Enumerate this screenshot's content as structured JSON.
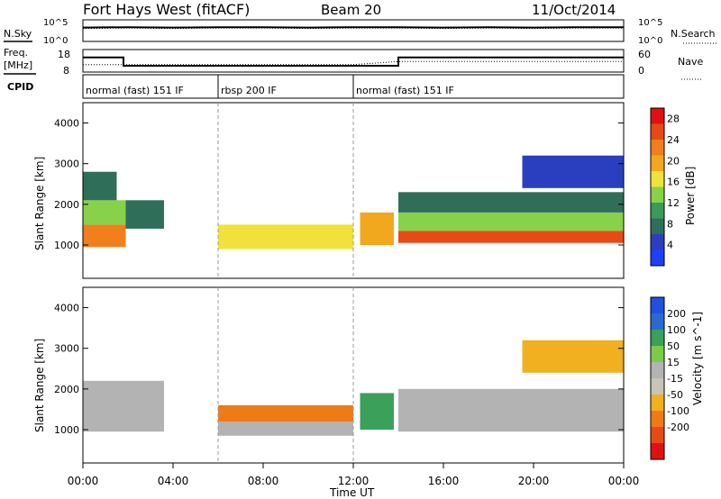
{
  "header": {
    "radar": "Fort Hays West (fitACF)",
    "beam": "Beam 20",
    "date": "11/Oct/2014"
  },
  "colors": {
    "power": [
      "#1f3fff",
      "#2a3fbf",
      "#2f6f5a",
      "#3b9a5a",
      "#88d14a",
      "#f0e23a",
      "#f2a81e",
      "#f07f1c",
      "#e84a16",
      "#e01010"
    ],
    "velocity": [
      "#2050e0",
      "#2a6ad0",
      "#3aa05a",
      "#7acc48",
      "#b3b3b3",
      "#c8c4b8",
      "#f0b020",
      "#f07a18",
      "#e84a14",
      "#e01010"
    ],
    "line": "#000000"
  },
  "chart_data": [
    {
      "type": "line",
      "panel": "noise",
      "left_label": "N.Sky",
      "right_label": "N.Search",
      "left_ticks": [
        "10^5",
        "10^0"
      ],
      "right_ticks": [
        "10^5",
        "10^0"
      ],
      "series": [
        {
          "name": "N.Sky",
          "x": [
            0,
            2,
            4,
            6,
            8,
            10,
            12,
            14,
            16,
            18,
            20,
            22,
            24
          ],
          "y": [
            3.2,
            3.3,
            3.2,
            3.3,
            3.3,
            3.2,
            3.3,
            3.3,
            3.2,
            3.3,
            3.2,
            3.3,
            3.3
          ]
        },
        {
          "name": "N.Search",
          "x": [
            0,
            2,
            4,
            6,
            8,
            10,
            12,
            14,
            16,
            18,
            20,
            22,
            24
          ],
          "y": [
            3.0,
            3.1,
            3.0,
            3.1,
            3.1,
            3.0,
            3.1,
            3.1,
            3.0,
            3.1,
            3.0,
            3.1,
            3.1
          ]
        }
      ],
      "xlim": [
        0,
        24
      ],
      "ylim": [
        0,
        5
      ]
    },
    {
      "type": "line",
      "panel": "frequency",
      "left_label": "Freq.",
      "left_unit": "[MHz]",
      "right_label": "Nave",
      "left_ticks": [
        "18",
        "8"
      ],
      "right_ticks": [
        "60",
        "0"
      ],
      "series": [
        {
          "name": "Freq.",
          "x": [
            0,
            1.8,
            1.8,
            14.0,
            14.0,
            24
          ],
          "y": [
            14.5,
            14.5,
            10.8,
            10.8,
            14.5,
            14.5
          ]
        },
        {
          "name": "Nave",
          "x": [
            0,
            2,
            4,
            6,
            8,
            10,
            12,
            14,
            16,
            18,
            20,
            22,
            24
          ],
          "y": [
            20,
            20,
            20,
            20,
            20,
            20,
            20,
            28,
            28,
            28,
            28,
            28,
            28
          ]
        }
      ],
      "ylim_freq": [
        8,
        18
      ],
      "ylim_nave": [
        0,
        60
      ]
    },
    {
      "type": "table",
      "panel": "cpid",
      "label": "CPID",
      "segments": [
        {
          "start": 0,
          "end": 6,
          "text": "normal (fast) 151 IF"
        },
        {
          "start": 6,
          "end": 12,
          "text": "rbsp 200 IF"
        },
        {
          "start": 12,
          "end": 24,
          "text": "normal (fast) 151 IF"
        }
      ]
    },
    {
      "type": "heatmap",
      "panel": "power",
      "ylabel": "Slant Range [km]",
      "yticks": [
        "1000",
        "2000",
        "3000",
        "4000"
      ],
      "ytick_values": [
        1000,
        2000,
        3000,
        4000
      ],
      "ylim": [
        180,
        4500
      ],
      "colorbar_label": "Power [dB]",
      "colorbar_ticks": [
        "4",
        "8",
        "12",
        "16",
        "20",
        "24",
        "28"
      ],
      "colorbar_range": [
        0,
        30
      ],
      "bands": [
        {
          "t0": 0.0,
          "t1": 1.9,
          "r0": 950,
          "r1": 1500,
          "level": 22
        },
        {
          "t0": 0.0,
          "t1": 1.9,
          "r0": 1500,
          "r1": 2100,
          "level": 12
        },
        {
          "t0": 0.0,
          "t1": 1.5,
          "r0": 2100,
          "r1": 2800,
          "level": 6
        },
        {
          "t0": 1.9,
          "t1": 3.6,
          "r0": 1400,
          "r1": 2100,
          "level": 8
        },
        {
          "t0": 6.0,
          "t1": 12.0,
          "r0": 900,
          "r1": 1500,
          "level": 16
        },
        {
          "t0": 12.3,
          "t1": 13.8,
          "r0": 1000,
          "r1": 1800,
          "level": 18
        },
        {
          "t0": 14.0,
          "t1": 24.0,
          "r0": 1050,
          "r1": 1350,
          "level": 26
        },
        {
          "t0": 14.0,
          "t1": 24.0,
          "r0": 1350,
          "r1": 1800,
          "level": 14
        },
        {
          "t0": 14.0,
          "t1": 24.0,
          "r0": 1800,
          "r1": 2300,
          "level": 6
        },
        {
          "t0": 19.5,
          "t1": 24.0,
          "r0": 2400,
          "r1": 3200,
          "level": 4
        }
      ]
    },
    {
      "type": "heatmap",
      "panel": "velocity",
      "ylabel": "Slant Range [km]",
      "yticks": [
        "1000",
        "2000",
        "3000",
        "4000"
      ],
      "ytick_values": [
        1000,
        2000,
        3000,
        4000
      ],
      "ylim": [
        180,
        4500
      ],
      "colorbar_label": "Velocity [m s^-1]",
      "colorbar_ticks": [
        "200",
        "100",
        "50",
        "15",
        "-15",
        "-50",
        "-100",
        "-200"
      ],
      "bands": [
        {
          "t0": 0.0,
          "t1": 3.6,
          "r0": 950,
          "r1": 2200,
          "level": 0
        },
        {
          "t0": 6.0,
          "t1": 12.0,
          "r0": 850,
          "r1": 1200,
          "level": 0
        },
        {
          "t0": 6.0,
          "t1": 12.0,
          "r0": 1200,
          "r1": 1600,
          "level": -60
        },
        {
          "t0": 12.3,
          "t1": 13.8,
          "r0": 1000,
          "r1": 1900,
          "level": 40
        },
        {
          "t0": 14.0,
          "t1": 24.0,
          "r0": 950,
          "r1": 2000,
          "level": 0
        },
        {
          "t0": 19.5,
          "t1": 24.0,
          "r0": 2400,
          "r1": 3200,
          "level": -20
        }
      ]
    }
  ],
  "xaxis": {
    "label": "Time UT",
    "ticks": [
      "00:00",
      "04:00",
      "08:00",
      "12:00",
      "16:00",
      "20:00",
      "00:00"
    ],
    "tick_hours": [
      0,
      4,
      8,
      12,
      16,
      20,
      24
    ],
    "xlim": [
      0,
      24
    ]
  }
}
